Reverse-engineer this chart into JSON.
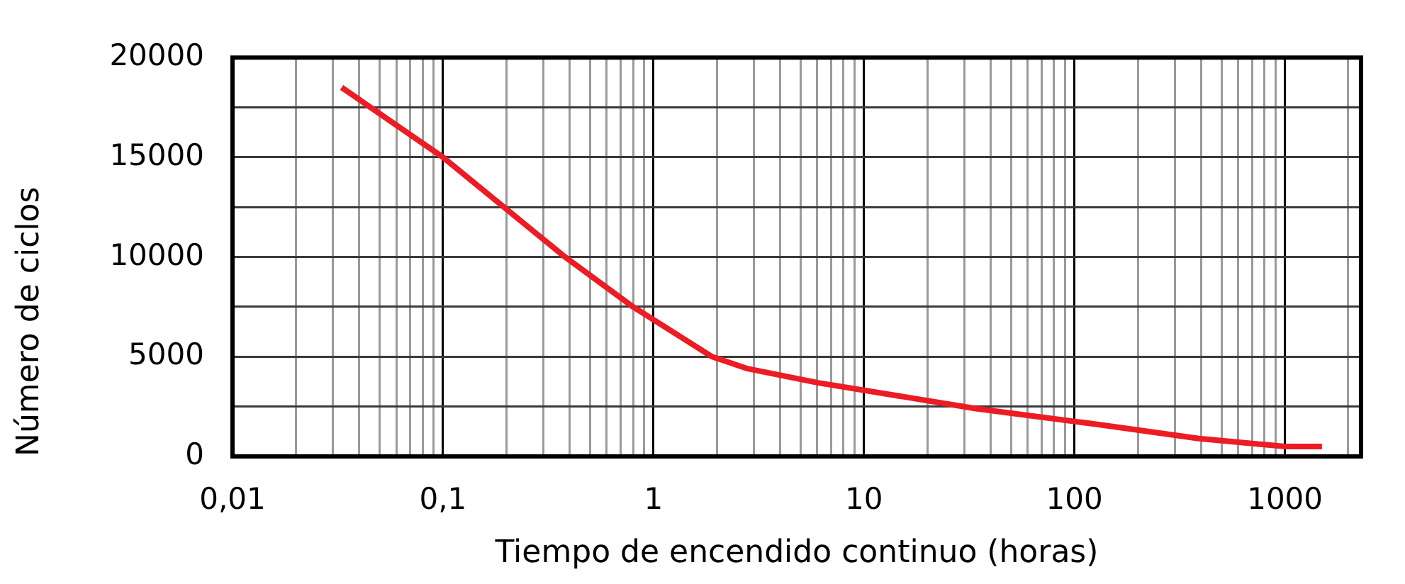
{
  "chart_data": {
    "type": "line",
    "xlabel": "Tiempo de encendido continuo (horas)",
    "ylabel": "Número de ciclos",
    "x": [
      0.033,
      0.1,
      0.38,
      0.8,
      1.9,
      2.8,
      6,
      34,
      130,
      390,
      1000,
      1500
    ],
    "series": [
      {
        "color": "#ed1c24",
        "values": [
          18500,
          15000,
          10000,
          7500,
          5000,
          4400,
          3700,
          2400,
          1600,
          900,
          500,
          500
        ]
      }
    ],
    "log": "x",
    "xlim": [
      0.01,
      2300
    ],
    "ylim": [
      0,
      20000
    ],
    "xticks": [
      {
        "value": 0.01,
        "label": "0,01"
      },
      {
        "value": 0.02,
        "label": null
      },
      {
        "value": 0.03,
        "label": null
      },
      {
        "value": 0.04,
        "label": null
      },
      {
        "value": 0.05,
        "label": null
      },
      {
        "value": 0.06,
        "label": null
      },
      {
        "value": 0.07,
        "label": null
      },
      {
        "value": 0.08,
        "label": null
      },
      {
        "value": 0.09,
        "label": null
      },
      {
        "value": 0.1,
        "label": "0,1"
      },
      {
        "value": 0.2,
        "label": null
      },
      {
        "value": 0.3,
        "label": null
      },
      {
        "value": 0.4,
        "label": null
      },
      {
        "value": 0.5,
        "label": null
      },
      {
        "value": 0.6,
        "label": null
      },
      {
        "value": 0.7,
        "label": null
      },
      {
        "value": 0.8,
        "label": null
      },
      {
        "value": 0.9,
        "label": null
      },
      1,
      {
        "value": 2,
        "label": null
      },
      {
        "value": 3,
        "label": null
      },
      {
        "value": 4,
        "label": null
      },
      {
        "value": 5,
        "label": null
      },
      {
        "value": 6,
        "label": null
      },
      {
        "value": 7,
        "label": null
      },
      {
        "value": 8,
        "label": null
      },
      {
        "value": 9,
        "label": null
      },
      10,
      {
        "value": 20,
        "label": null
      },
      {
        "value": 30,
        "label": null
      },
      {
        "value": 40,
        "label": null
      },
      {
        "value": 50,
        "label": null
      },
      {
        "value": 60,
        "label": null
      },
      {
        "value": 70,
        "label": null
      },
      {
        "value": 80,
        "label": null
      },
      {
        "value": 90,
        "label": null
      },
      100,
      {
        "value": 200,
        "label": null
      },
      {
        "value": 300,
        "label": null
      },
      {
        "value": 400,
        "label": null
      },
      {
        "value": 500,
        "label": null
      },
      {
        "value": 600,
        "label": null
      },
      {
        "value": 700,
        "label": null
      },
      {
        "value": 800,
        "label": null
      },
      {
        "value": 900,
        "label": null
      },
      1000,
      {
        "value": 2000,
        "label": null
      }
    ],
    "yticks": [
      0,
      {
        "value": 2500,
        "label": null
      },
      5000,
      {
        "value": 7500,
        "label": null
      },
      10000,
      {
        "value": 12500,
        "label": null
      },
      15000,
      {
        "value": 17500,
        "label": null
      },
      20000
    ],
    "grid": true,
    "marker": "none",
    "line_style": "solid"
  }
}
